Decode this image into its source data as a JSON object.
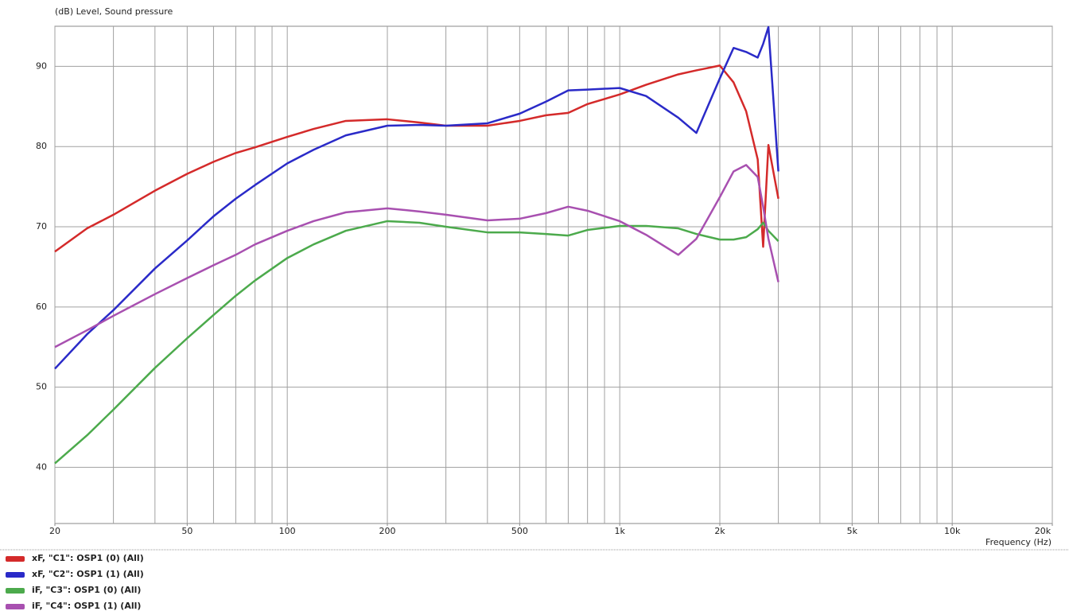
{
  "chart_data": {
    "type": "line",
    "ylabel": "(dB)  Level, Sound pressure",
    "xlabel": "Frequency  (Hz)",
    "xscale": "log",
    "xlim": [
      20,
      20000
    ],
    "ylim": [
      33,
      95
    ],
    "xticks": [
      20,
      50,
      100,
      200,
      500,
      {
        "value": 1000,
        "label": "1k"
      },
      {
        "value": 2000,
        "label": "2k"
      },
      {
        "value": 5000,
        "label": "5k"
      },
      {
        "value": 10000,
        "label": "10k"
      },
      {
        "value": 20000,
        "label": "20k"
      }
    ],
    "xgrid": [
      20,
      30,
      40,
      50,
      60,
      70,
      80,
      90,
      100,
      200,
      300,
      400,
      500,
      600,
      700,
      800,
      900,
      1000,
      2000,
      3000,
      4000,
      5000,
      6000,
      7000,
      8000,
      9000,
      10000,
      20000
    ],
    "yticks": [
      40,
      50,
      60,
      70,
      80,
      90
    ],
    "grid": true,
    "x": [
      20,
      25,
      30,
      40,
      50,
      60,
      70,
      80,
      100,
      120,
      150,
      200,
      250,
      300,
      400,
      500,
      600,
      700,
      800,
      1000,
      1200,
      1500,
      1700,
      2000,
      2200,
      2400,
      2600,
      2700,
      2800,
      3000
    ],
    "series": [
      {
        "name": "xF, \"C1\": OSP1 (0)  (All)",
        "color": "#d42a2a",
        "values": [
          66.9,
          69.8,
          71.5,
          74.5,
          76.6,
          78.1,
          79.2,
          79.9,
          81.2,
          82.2,
          83.2,
          83.4,
          83,
          82.6,
          82.6,
          83.2,
          83.9,
          84.2,
          85.3,
          86.5,
          87.7,
          89,
          89.5,
          90.1,
          88,
          84.4,
          78.4,
          67.5,
          80.2,
          73.5
        ]
      },
      {
        "name": "xF, \"C2\": OSP1 (1)  (All)",
        "color": "#2a2ac8",
        "values": [
          52.3,
          56.6,
          59.6,
          64.8,
          68.3,
          71.3,
          73.5,
          75.2,
          77.9,
          79.6,
          81.4,
          82.6,
          82.7,
          82.6,
          82.9,
          84.1,
          85.6,
          87,
          87.1,
          87.3,
          86.3,
          83.6,
          81.7,
          88.5,
          92.3,
          91.8,
          91.1,
          92.8,
          94.9,
          76.9
        ]
      },
      {
        "name": "iF, \"C3\": OSP1 (0)  (All)",
        "color": "#4caa4c",
        "values": [
          40.5,
          44,
          47.2,
          52.4,
          56.1,
          59,
          61.4,
          63.3,
          66.1,
          67.8,
          69.5,
          70.7,
          70.5,
          70,
          69.3,
          69.3,
          69.1,
          68.9,
          69.6,
          70.1,
          70.1,
          69.8,
          69.1,
          68.4,
          68.4,
          68.7,
          69.7,
          70.5,
          69.5,
          68.2
        ]
      },
      {
        "name": "iF, \"C4\": OSP1 (1)  (All)",
        "color": "#a850b0",
        "values": [
          55,
          57.1,
          58.9,
          61.6,
          63.6,
          65.2,
          66.5,
          67.8,
          69.5,
          70.7,
          71.8,
          72.3,
          71.9,
          71.5,
          70.8,
          71,
          71.7,
          72.5,
          72,
          70.7,
          69,
          66.5,
          68.5,
          73.7,
          76.9,
          77.7,
          76.2,
          72.5,
          68.5,
          63.1
        ]
      }
    ]
  }
}
